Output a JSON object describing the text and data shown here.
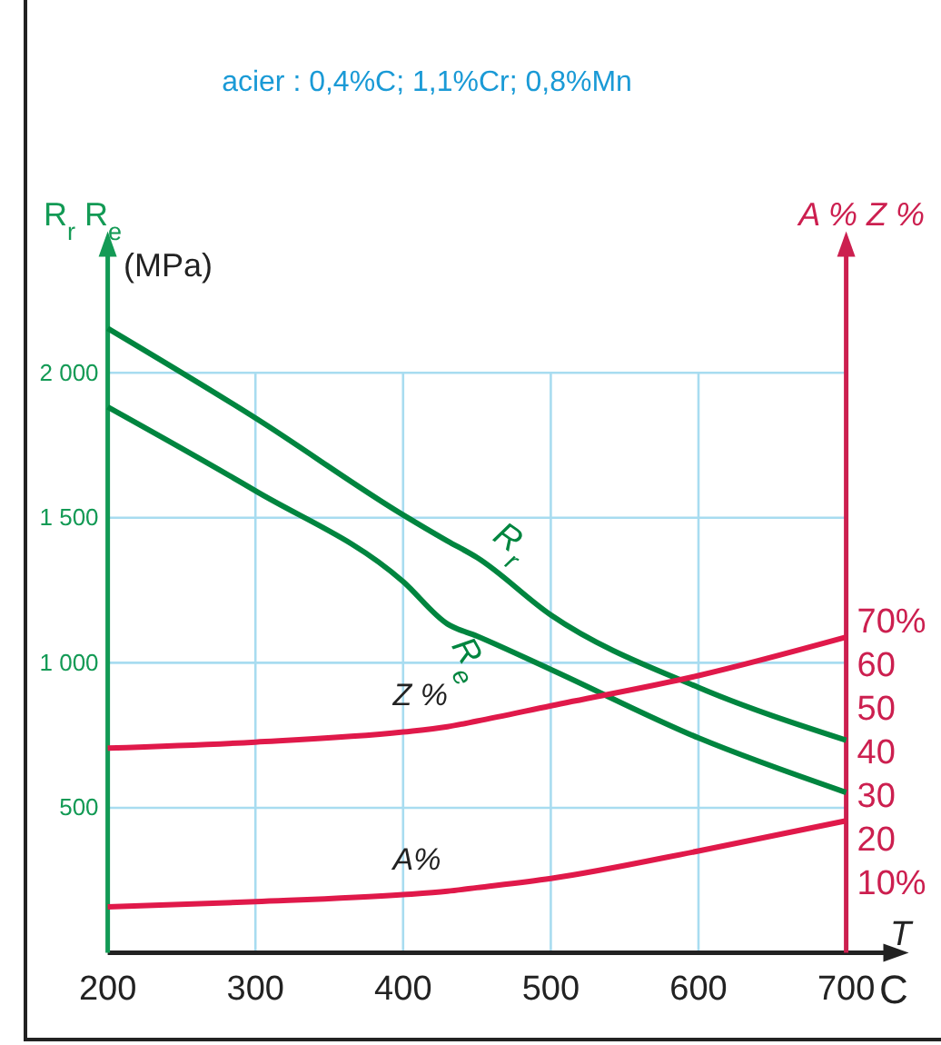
{
  "chart_data": {
    "type": "line",
    "title": "acier : 0,4%C; 1,1%Cr; 0,8%Mn",
    "xlabel": "T",
    "ylabel": "R$_{r}$ R$_{e}$",
    "y2label": "A % Z %",
    "annotations": [
      "(MPa)",
      "C"
    ],
    "x": [
      200,
      300,
      400,
      430,
      450,
      500,
      600,
      700
    ],
    "xlim": [
      200,
      735
    ],
    "xticks": [
      200,
      300,
      400,
      500,
      600,
      700
    ],
    "ylim": [
      0,
      2450
    ],
    "yticks": [
      {
        "value": 500,
        "label": "500"
      },
      {
        "value": 1000,
        "label": "1 000"
      },
      {
        "value": 1500,
        "label": "1 500"
      },
      {
        "value": 2000,
        "label": "2 000"
      }
    ],
    "y2lim": [
      -5.9,
      156.6
    ],
    "y2ticks": [
      {
        "value": 10,
        "label": "10%"
      },
      20,
      30,
      40,
      50,
      60,
      {
        "value": 70,
        "label": "70%"
      }
    ],
    "grid": true,
    "marker": "none",
    "line_style": "solid",
    "series": [
      {
        "name": "R$_{r}$",
        "color": "#00853f",
        "values": [
          2153,
          1844,
          1510,
          1420,
          1363,
          1165,
          915,
          733
        ]
      },
      {
        "name": "R$_{e}$",
        "color": "#00853f",
        "values": [
          1882,
          1593,
          1280,
          1134,
          1092,
          977,
          741,
          553
        ]
      },
      {
        "name": "Z %",
        "color": "#e0194a",
        "axis": "y2",
        "values": [
          40.9,
          42.3,
          44.6,
          45.8,
          47.1,
          50.6,
          57.5,
          66.3
        ]
      },
      {
        "name": "A%",
        "color": "#e0194a",
        "axis": "y2",
        "values": [
          4.6,
          5.8,
          7.4,
          8.2,
          9.0,
          11.1,
          17.4,
          24.3
        ]
      }
    ]
  }
}
